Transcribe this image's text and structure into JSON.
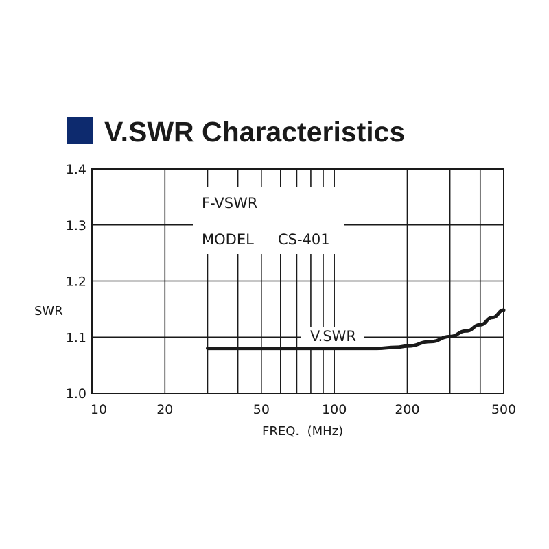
{
  "title": "V.SWR Characteristics",
  "colors": {
    "title_square": "#0d2a6e",
    "grid": "#1a1a1a",
    "curve": "#1a1a1a",
    "background": "#ffffff"
  },
  "chart_data": {
    "type": "line",
    "title": "V.SWR Characteristics",
    "xlabel": "FREQ.  (MHz)",
    "ylabel": "SWR",
    "xscale": "log",
    "xlim": [
      10,
      500
    ],
    "ylim": [
      1.0,
      1.4
    ],
    "grid": true,
    "x_tick_labels": [
      "10",
      "20",
      "50",
      "100",
      "200",
      "500"
    ],
    "x_tick_values": [
      10,
      20,
      50,
      100,
      200,
      500
    ],
    "y_tick_labels": [
      "1.0",
      "1.1",
      "1.2",
      "1.3",
      "1.4"
    ],
    "y_tick_values": [
      1.0,
      1.1,
      1.2,
      1.3,
      1.4
    ],
    "annotations": [
      "F-VSWR",
      "MODEL",
      "CS-401"
    ],
    "series": [
      {
        "name": "V.SWR",
        "x": [
          30,
          50,
          100,
          150,
          180,
          200,
          250,
          300,
          350,
          400,
          450,
          500
        ],
        "y": [
          1.08,
          1.08,
          1.08,
          1.08,
          1.082,
          1.084,
          1.092,
          1.101,
          1.111,
          1.122,
          1.135,
          1.148
        ]
      }
    ]
  }
}
